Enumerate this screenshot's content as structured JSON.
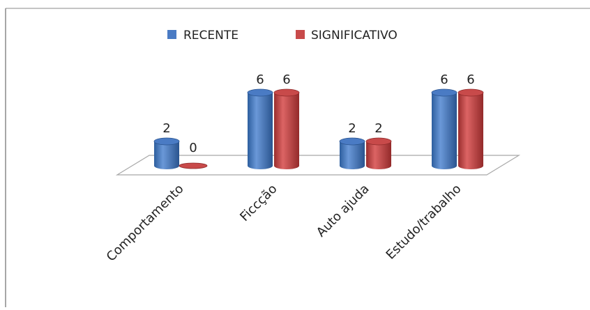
{
  "chart_data": {
    "type": "bar",
    "style": "3d-cylinder",
    "title": "",
    "categories": [
      "Comportamento",
      "Ficcção",
      "Auto ajuda",
      "Estudo/trabalho"
    ],
    "series": [
      {
        "name": "RECENTE",
        "values": [
          2,
          6,
          2,
          6
        ],
        "color": "#4a7bc4"
      },
      {
        "name": "SIGNIFICATIVO",
        "values": [
          0,
          6,
          2,
          6
        ],
        "color": "#c84a4a"
      }
    ],
    "data_labels": true,
    "ylim": [
      0,
      6
    ],
    "legend": "top-center",
    "grid": false
  }
}
